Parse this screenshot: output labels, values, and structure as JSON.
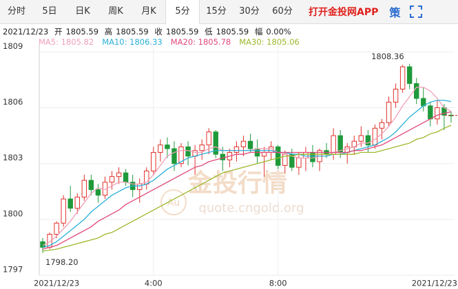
{
  "tabs": [
    "分时",
    "5日",
    "日K",
    "周K",
    "月K",
    "5分",
    "15分",
    "30分",
    "60分"
  ],
  "active_tab": 5,
  "app_link": "打开金投网APP",
  "strategy_icon": "策",
  "info": {
    "date": "2021/12/23",
    "open_label": "开",
    "open": "1805.59",
    "high_label": "高",
    "high": "1805.59",
    "close_label": "收",
    "close": "1805.59",
    "low_label": "低",
    "low": "1805.59",
    "change_label": "幅",
    "change": "0.00%"
  },
  "watermark": {
    "brand": "金投行情",
    "url": "quote.cngold.org",
    "logo": "Au"
  },
  "chart_data": {
    "type": "candlestick",
    "up_color": "#e0302a",
    "down_color": "#1f9a3a",
    "categories": [
      null,
      null,
      "2021/12/23",
      null,
      null,
      null,
      null,
      null,
      null,
      null,
      null,
      null,
      null,
      null,
      null,
      null,
      "4:00",
      null,
      null,
      null,
      null,
      null,
      null,
      null,
      null,
      null,
      null,
      null,
      null,
      null,
      null,
      null,
      null,
      null,
      "8:00",
      null,
      null,
      null,
      null,
      null,
      null,
      null,
      null,
      null,
      null,
      null,
      null,
      null,
      null,
      null,
      null,
      null,
      null,
      null,
      null,
      null,
      null,
      null,
      null,
      "2021/12/23"
    ],
    "open": [
      1798.8,
      1798.5,
      1799.2,
      1799.8,
      1801.1,
      1800.6,
      1801.2,
      1802.1,
      1801.6,
      1801.3,
      1802.0,
      1802.3,
      1802.5,
      1802.0,
      1801.6,
      1801.9,
      1802.6,
      1803.6,
      1804.0,
      1803.8,
      1803.0,
      1803.9,
      1803.4,
      1803.7,
      1804.0,
      1804.7,
      1803.5,
      1803.2,
      1803.6,
      1803.9,
      1804.2,
      1803.8,
      1803.4,
      1803.6,
      1803.9,
      1802.9,
      1803.5,
      1802.8,
      1803.3,
      1803.6,
      1803.1,
      1803.7,
      1803.5,
      1804.5,
      1803.6,
      1803.9,
      1804.2,
      1804.5,
      1804.0,
      1804.9,
      1805.2,
      1806.3,
      1807.0,
      1808.2,
      1807.3,
      1806.5,
      1806.1,
      1805.4,
      1806.0,
      1805.6
    ],
    "high": [
      1799.0,
      1799.3,
      1799.9,
      1801.3,
      1801.8,
      1801.4,
      1802.4,
      1802.4,
      1801.9,
      1802.3,
      1802.6,
      1802.8,
      1802.7,
      1802.4,
      1802.2,
      1802.8,
      1803.9,
      1804.3,
      1804.4,
      1804.2,
      1804.1,
      1804.2,
      1804.0,
      1804.3,
      1804.9,
      1804.8,
      1803.9,
      1803.8,
      1804.2,
      1804.5,
      1804.6,
      1804.3,
      1803.9,
      1804.2,
      1804.0,
      1803.7,
      1803.8,
      1803.6,
      1803.9,
      1804.0,
      1803.8,
      1804.1,
      1804.9,
      1804.8,
      1804.1,
      1804.5,
      1805.0,
      1804.8,
      1805.1,
      1805.4,
      1806.6,
      1807.3,
      1808.3,
      1808.36,
      1807.6,
      1807.1,
      1806.3,
      1806.4,
      1806.2,
      1805.8
    ],
    "low": [
      1798.2,
      1798.4,
      1799.0,
      1799.6,
      1800.4,
      1800.3,
      1801.0,
      1801.3,
      1800.9,
      1801.1,
      1801.6,
      1801.9,
      1801.8,
      1801.2,
      1800.9,
      1801.6,
      1802.4,
      1803.1,
      1803.3,
      1802.6,
      1802.8,
      1802.9,
      1802.4,
      1803.2,
      1803.5,
      1803.3,
      1802.6,
      1802.8,
      1803.1,
      1803.4,
      1803.6,
      1803.0,
      1802.3,
      1803.2,
      1802.7,
      1802.5,
      1802.6,
      1802.4,
      1802.6,
      1802.8,
      1802.6,
      1803.3,
      1803.2,
      1803.3,
      1803.0,
      1803.5,
      1803.9,
      1803.6,
      1803.8,
      1804.3,
      1805.0,
      1806.0,
      1806.8,
      1807.0,
      1806.2,
      1805.8,
      1805.0,
      1805.1,
      1804.8,
      1805.2
    ],
    "close": [
      1798.5,
      1799.2,
      1799.8,
      1801.1,
      1800.6,
      1801.2,
      1802.1,
      1801.6,
      1801.3,
      1802.0,
      1802.3,
      1802.5,
      1802.0,
      1801.6,
      1801.9,
      1802.6,
      1803.6,
      1804.0,
      1803.8,
      1803.0,
      1803.9,
      1803.4,
      1803.7,
      1804.0,
      1804.7,
      1803.5,
      1803.2,
      1803.6,
      1803.9,
      1804.2,
      1803.8,
      1803.4,
      1803.6,
      1803.9,
      1802.9,
      1803.5,
      1802.8,
      1803.3,
      1803.6,
      1803.1,
      1803.7,
      1803.5,
      1804.5,
      1803.6,
      1803.9,
      1804.2,
      1804.5,
      1804.0,
      1804.9,
      1805.2,
      1806.3,
      1807.0,
      1808.2,
      1807.3,
      1806.5,
      1806.1,
      1805.4,
      1806.0,
      1805.6,
      1805.59
    ],
    "series": [
      {
        "name": "MA5",
        "legend_label": "MA5: 1805.82",
        "color": "#f0a0b8",
        "values": [
          1798.6,
          1798.8,
          1799.1,
          1799.5,
          1799.9,
          1800.4,
          1800.9,
          1801.4,
          1801.7,
          1801.6,
          1801.8,
          1802.0,
          1802.0,
          1801.9,
          1801.9,
          1802.0,
          1802.4,
          1802.9,
          1803.4,
          1803.6,
          1803.7,
          1803.7,
          1803.6,
          1803.6,
          1803.8,
          1803.9,
          1803.7,
          1803.7,
          1803.7,
          1803.7,
          1803.7,
          1803.8,
          1803.8,
          1803.8,
          1803.6,
          1803.5,
          1803.4,
          1803.3,
          1803.3,
          1803.3,
          1803.4,
          1803.4,
          1803.6,
          1803.7,
          1803.8,
          1803.9,
          1804.1,
          1804.1,
          1804.3,
          1804.6,
          1805.0,
          1805.5,
          1806.1,
          1806.6,
          1807.1,
          1807.1,
          1806.9,
          1806.5,
          1806.0,
          1805.82
        ]
      },
      {
        "name": "MA10",
        "legend_label": "MA10: 1806.33",
        "color": "#2ab0d8",
        "values": [
          1798.5,
          1798.6,
          1798.8,
          1799.1,
          1799.4,
          1799.7,
          1800.0,
          1800.4,
          1800.7,
          1801.0,
          1801.3,
          1801.5,
          1801.7,
          1801.8,
          1801.8,
          1801.9,
          1802.1,
          1802.4,
          1802.7,
          1802.9,
          1803.1,
          1803.3,
          1803.4,
          1803.5,
          1803.6,
          1803.7,
          1803.7,
          1803.7,
          1803.7,
          1803.7,
          1803.7,
          1803.7,
          1803.7,
          1803.7,
          1803.6,
          1803.6,
          1803.5,
          1803.5,
          1803.4,
          1803.4,
          1803.4,
          1803.4,
          1803.5,
          1803.5,
          1803.6,
          1803.7,
          1803.8,
          1803.9,
          1804.0,
          1804.2,
          1804.4,
          1804.7,
          1805.1,
          1805.5,
          1805.8,
          1806.1,
          1806.3,
          1806.4,
          1806.4,
          1806.33
        ]
      },
      {
        "name": "MA20",
        "legend_label": "MA20: 1805.78",
        "color": "#e04878",
        "values": [
          1798.4,
          1798.5,
          1798.6,
          1798.8,
          1799.0,
          1799.2,
          1799.4,
          1799.6,
          1799.9,
          1800.1,
          1800.3,
          1800.5,
          1800.8,
          1801.0,
          1801.2,
          1801.4,
          1801.6,
          1801.8,
          1802.0,
          1802.2,
          1802.4,
          1802.6,
          1802.8,
          1802.9,
          1803.1,
          1803.2,
          1803.3,
          1803.4,
          1803.5,
          1803.5,
          1803.6,
          1803.6,
          1803.6,
          1803.6,
          1803.6,
          1803.6,
          1803.6,
          1803.6,
          1803.6,
          1803.6,
          1803.6,
          1803.6,
          1803.6,
          1803.6,
          1803.6,
          1803.7,
          1803.7,
          1803.8,
          1803.9,
          1804.0,
          1804.2,
          1804.4,
          1804.6,
          1804.8,
          1805.0,
          1805.2,
          1805.4,
          1805.6,
          1805.7,
          1805.78
        ]
      },
      {
        "name": "MA30",
        "legend_label": "MA30: 1805.06",
        "color": "#9cb82a",
        "values": [
          1798.3,
          1798.35,
          1798.4,
          1798.5,
          1798.6,
          1798.7,
          1798.8,
          1798.9,
          1799.0,
          1799.2,
          1799.3,
          1799.5,
          1799.7,
          1799.9,
          1800.1,
          1800.3,
          1800.5,
          1800.7,
          1800.9,
          1801.1,
          1801.3,
          1801.5,
          1801.7,
          1801.9,
          1802.1,
          1802.3,
          1802.5,
          1802.6,
          1802.7,
          1802.8,
          1802.9,
          1803.0,
          1803.1,
          1803.2,
          1803.3,
          1803.4,
          1803.4,
          1803.5,
          1803.5,
          1803.5,
          1803.5,
          1803.5,
          1803.5,
          1803.5,
          1803.5,
          1803.5,
          1803.6,
          1803.6,
          1803.6,
          1803.7,
          1803.8,
          1803.9,
          1804.0,
          1804.1,
          1804.3,
          1804.4,
          1804.6,
          1804.7,
          1804.9,
          1805.06
        ]
      }
    ],
    "annotations": [
      {
        "text": "1808.36",
        "index": 53,
        "value": 1808.36
      },
      {
        "text": "1798.20",
        "index": 0,
        "value": 1798.2
      }
    ],
    "last_price": 1805.59,
    "ylim": [
      1797,
      1809.2
    ],
    "yticks": [
      1797,
      1800,
      1803,
      1806,
      1809
    ],
    "grid": true
  }
}
